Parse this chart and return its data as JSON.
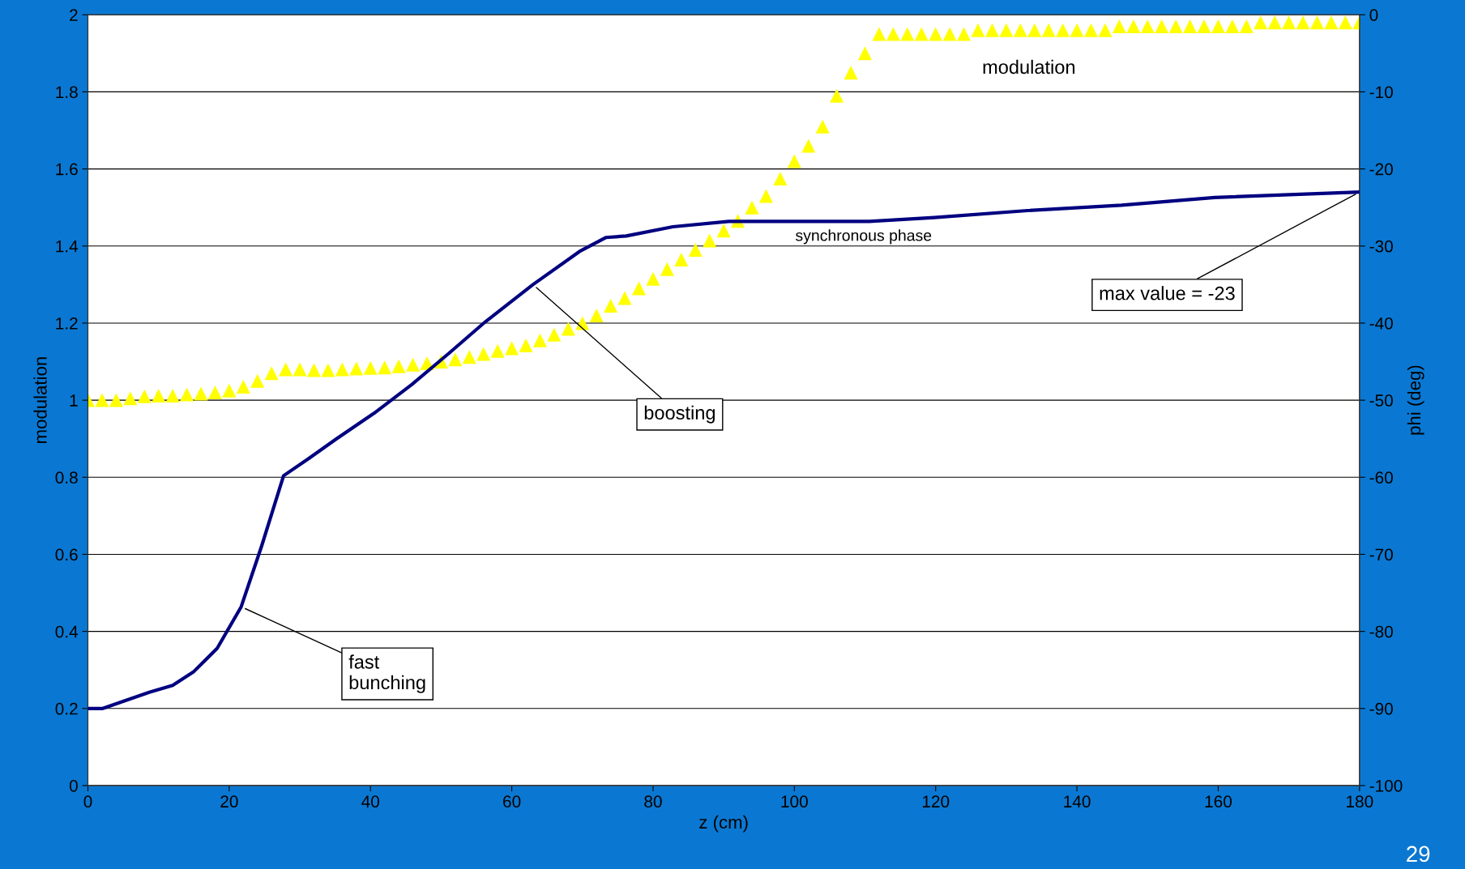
{
  "chart_data": {
    "type": "line",
    "xlabel": "z (cm)",
    "ylabel": "modulation",
    "y2label": "phi (deg)",
    "xlim": [
      0,
      180
    ],
    "xticks": [
      0,
      20,
      40,
      60,
      80,
      100,
      120,
      140,
      160,
      180
    ],
    "ylim": [
      0,
      2
    ],
    "yticks": [
      0,
      0.2,
      0.4,
      0.6,
      0.8,
      1,
      1.2,
      1.4,
      1.6,
      1.8,
      2
    ],
    "y2lim": [
      -100,
      0
    ],
    "y2ticks": [
      -100,
      -90,
      -80,
      -70,
      -60,
      -50,
      -40,
      -30,
      -20,
      -10,
      0
    ],
    "grid": "y",
    "legend": false,
    "series": [
      {
        "name": "modulation",
        "type": "scatter",
        "marker": "triangle",
        "color": "#ffff00",
        "x": [
          0,
          2,
          4,
          6,
          8,
          10,
          12,
          14,
          16,
          18,
          20,
          22,
          24,
          26,
          28,
          30,
          32,
          34,
          36,
          38,
          40,
          42,
          44,
          46,
          48,
          50,
          52,
          54,
          56,
          58,
          60,
          62,
          64,
          66,
          68,
          70,
          72,
          74,
          76,
          78,
          80,
          82,
          84,
          86,
          88,
          90,
          92,
          94,
          96,
          98,
          100,
          102,
          104,
          106,
          108,
          110,
          112,
          114,
          116,
          118,
          120,
          122,
          124,
          126,
          128,
          130,
          132,
          134,
          136,
          138,
          140,
          142,
          144,
          146,
          148,
          150,
          152,
          154,
          156,
          158,
          160,
          162,
          164,
          166,
          168,
          170,
          172,
          174,
          176,
          178,
          180
        ],
        "values": [
          1.0,
          1.0,
          1.0,
          1.005,
          1.01,
          1.012,
          1.012,
          1.015,
          1.017,
          1.02,
          1.025,
          1.035,
          1.05,
          1.07,
          1.08,
          1.08,
          1.078,
          1.078,
          1.08,
          1.082,
          1.084,
          1.085,
          1.088,
          1.092,
          1.096,
          1.1,
          1.106,
          1.112,
          1.12,
          1.128,
          1.135,
          1.142,
          1.155,
          1.17,
          1.185,
          1.2,
          1.22,
          1.245,
          1.265,
          1.29,
          1.315,
          1.34,
          1.365,
          1.39,
          1.414,
          1.44,
          1.465,
          1.5,
          1.53,
          1.575,
          1.62,
          1.66,
          1.71,
          1.79,
          1.85,
          1.9,
          1.95,
          1.95,
          1.95,
          1.95,
          1.95,
          1.95,
          1.95,
          1.96,
          1.96,
          1.96,
          1.96,
          1.96,
          1.96,
          1.96,
          1.96,
          1.96,
          1.96,
          1.97,
          1.97,
          1.97,
          1.97,
          1.97,
          1.97,
          1.97,
          1.97,
          1.97,
          1.97,
          1.98,
          1.98,
          1.98,
          1.98,
          1.98,
          1.98,
          1.98,
          1.98
        ]
      },
      {
        "name": "synchronous phase",
        "axis": "y2",
        "color": "#000080",
        "marker": "none",
        "line_style": "solid",
        "x": [
          0,
          2.1,
          8.7,
          12,
          15,
          18.3,
          21.7,
          24.6,
          27.7,
          31.2,
          35.2,
          40.5,
          45.8,
          51,
          56.3,
          63,
          69.6,
          73.3,
          76.2,
          82.8,
          90.7,
          110.6,
          119.8,
          133,
          146.3,
          159.5,
          180
        ],
        "values": [
          -90,
          -90,
          -87.9,
          -87,
          -85.2,
          -82.2,
          -76.8,
          -68.9,
          -59.8,
          -57.6,
          -55,
          -51.7,
          -48,
          -44,
          -39.8,
          -35,
          -30.7,
          -28.9,
          -28.7,
          -27.5,
          -26.8,
          -26.8,
          -26.3,
          -25.4,
          -24.7,
          -23.7,
          -23
        ]
      }
    ],
    "annotations": [
      {
        "text": "fast\nbunching",
        "x": 21.7,
        "y": 0.464
      },
      {
        "text": "boosting",
        "x": 63,
        "y": 1.3
      },
      {
        "text": "max value = -23",
        "x": 180,
        "y": 1.54
      },
      "29"
    ]
  }
}
